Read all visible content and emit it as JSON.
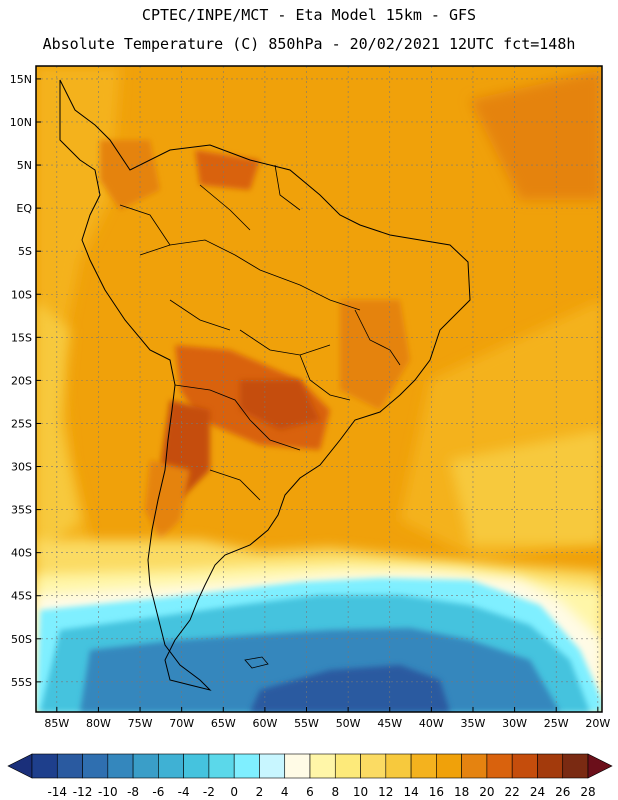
{
  "title_line1": "CPTEC/INPE/MCT -  Eta Model 15km - GFS",
  "title_line2": "Absolute Temperature (C) 850hPa - 20/02/2021 12UTC fct=148h",
  "lat_labels": [
    "15N",
    "10N",
    "5N",
    "EQ",
    "5S",
    "10S",
    "15S",
    "20S",
    "25S",
    "30S",
    "35S",
    "40S",
    "45S",
    "50S",
    "55S"
  ],
  "lat_values": [
    15,
    10,
    5,
    0,
    -5,
    -10,
    -15,
    -20,
    -25,
    -30,
    -35,
    -40,
    -45,
    -50,
    -55
  ],
  "lon_labels": [
    "85W",
    "80W",
    "75W",
    "70W",
    "65W",
    "60W",
    "55W",
    "50W",
    "45W",
    "40W",
    "35W",
    "30W",
    "25W",
    "20W"
  ],
  "lon_values": [
    -85,
    -80,
    -75,
    -70,
    -65,
    -60,
    -55,
    -50,
    -45,
    -40,
    -35,
    -30,
    -25,
    -20
  ],
  "colorbar": {
    "labels": [
      "-14",
      "-12",
      "-10",
      "-8",
      "-6",
      "-4",
      "-2",
      "0",
      "2",
      "4",
      "6",
      "8",
      "10",
      "12",
      "14",
      "16",
      "18",
      "20",
      "22",
      "24",
      "26",
      "28"
    ],
    "colors": [
      "#1e3f8c",
      "#2a5aa0",
      "#2f6fb0",
      "#3487bd",
      "#3a9ec8",
      "#3fb1d4",
      "#45c3de",
      "#5bd8ea",
      "#7fefff",
      "#c8f6ff",
      "#fffbe6",
      "#fff6a8",
      "#fdea7a",
      "#fbdb63",
      "#f7c93d",
      "#f4b21e",
      "#f0a10a",
      "#e58310",
      "#d9620d",
      "#c54d0c",
      "#a33a0c",
      "#7a2a12"
    ],
    "under_color": "#1a2f7a",
    "over_color": "#6b0f1a"
  },
  "colors": {
    "dominant_land": "#f0a10a",
    "hot_core": "#c54d0c",
    "ocean_mid": "#f4b21e",
    "cold_south": "#3fb1d4",
    "coldest": "#2a5aa0"
  }
}
